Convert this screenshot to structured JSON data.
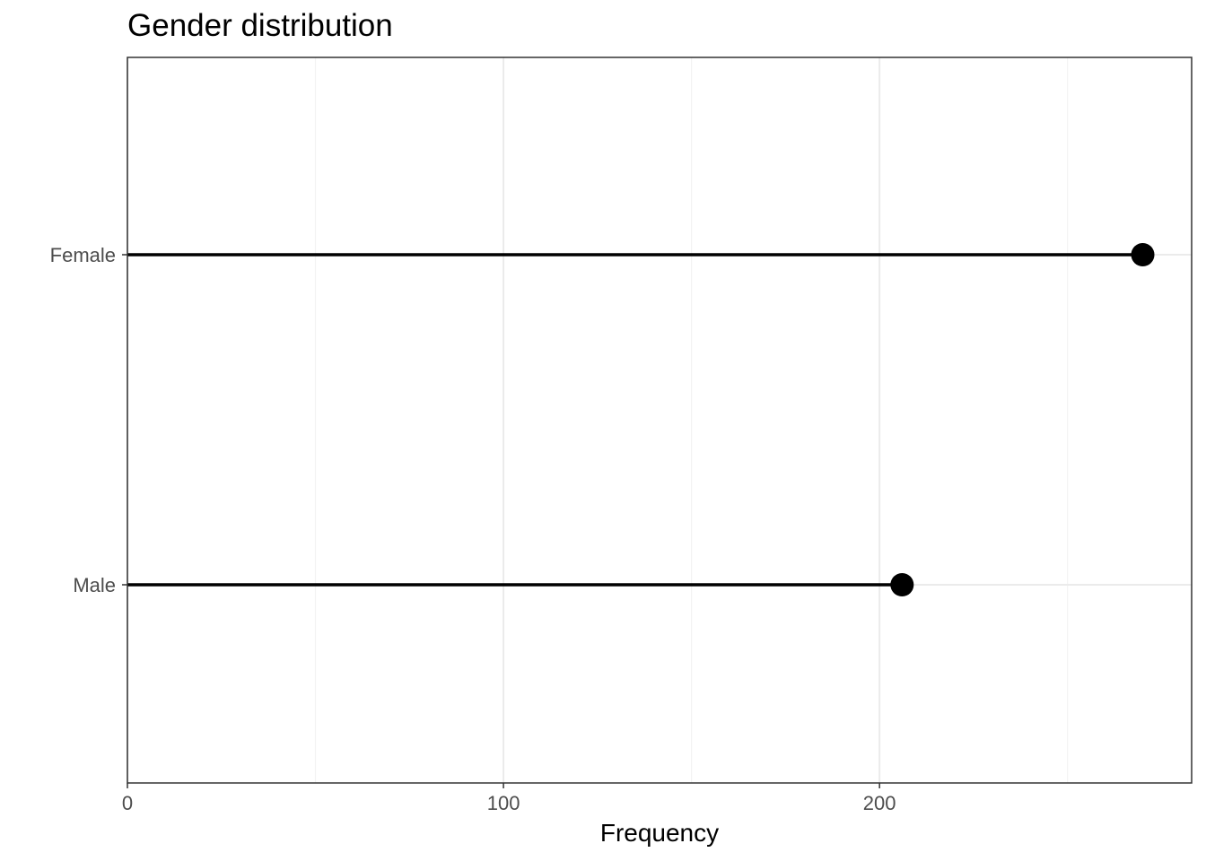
{
  "chart_data": {
    "type": "lollipop",
    "orientation": "horizontal",
    "title": "Gender distribution",
    "xlabel": "Frequency",
    "ylabel": "",
    "categories": [
      "Female",
      "Male"
    ],
    "values": [
      270,
      206
    ],
    "xlim": [
      0,
      283
    ],
    "xticks": [
      0,
      100,
      200
    ],
    "xtick_labels": [
      "0",
      "100",
      "200"
    ],
    "grid": true,
    "legend": "none",
    "colors": {
      "marker": "#000000",
      "stem": "#000000",
      "panel_border": "#333333",
      "grid_major": "#ebebeb",
      "grid_minor": "#f3f3f3",
      "tick_label": "#4d4d4d"
    }
  }
}
